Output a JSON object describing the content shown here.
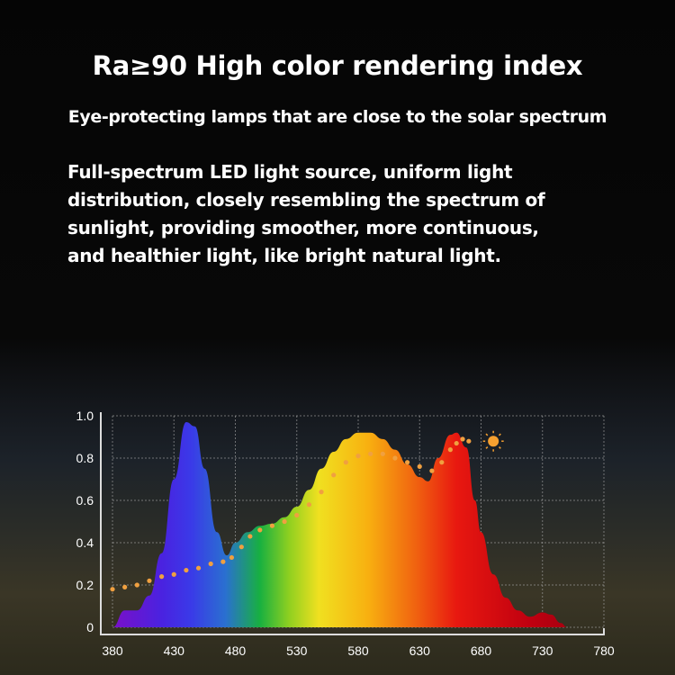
{
  "title": "Ra≥90 High color rendering index",
  "subtitle": "Eye-protecting lamps that are close to the solar spectrum",
  "description": [
    "Full-spectrum LED light source, uniform light",
    "distribution, closely resembling the spectrum of",
    "sunlight, providing smoother, more continuous,",
    "and healthier light, like bright natural light."
  ],
  "chart_data": {
    "type": "area",
    "xlim": [
      380,
      780
    ],
    "ylim": [
      0,
      1.0
    ],
    "grid": true,
    "xticks": [
      "380",
      "430",
      "480",
      "530",
      "580",
      "630",
      "680",
      "730",
      "780"
    ],
    "yticks": [
      "0",
      "0.2",
      "0.4",
      "0.6",
      "0.8",
      "1.0"
    ],
    "series": [
      {
        "style": "rainbow-filled-area",
        "x": [
          380,
          390,
          400,
          410,
          420,
          430,
          440,
          447,
          455,
          465,
          473,
          480,
          490,
          500,
          510,
          520,
          530,
          540,
          550,
          560,
          570,
          580,
          590,
          600,
          610,
          620,
          630,
          637,
          645,
          655,
          660,
          668,
          675,
          680,
          690,
          700,
          710,
          720,
          730,
          737,
          745,
          750
        ],
        "y": [
          0,
          0.08,
          0.08,
          0.15,
          0.35,
          0.7,
          0.97,
          0.95,
          0.75,
          0.45,
          0.34,
          0.4,
          0.45,
          0.48,
          0.49,
          0.52,
          0.57,
          0.65,
          0.75,
          0.83,
          0.89,
          0.92,
          0.92,
          0.89,
          0.84,
          0.77,
          0.71,
          0.69,
          0.8,
          0.91,
          0.92,
          0.85,
          0.6,
          0.45,
          0.25,
          0.14,
          0.08,
          0.05,
          0.07,
          0.06,
          0.02,
          0
        ]
      },
      {
        "style": "dotted-orange",
        "x": [
          380,
          390,
          400,
          410,
          420,
          430,
          440,
          450,
          460,
          470,
          477,
          485,
          492,
          500,
          510,
          520,
          530,
          540,
          550,
          560,
          570,
          580,
          590,
          600,
          610,
          620,
          630,
          640,
          648,
          655,
          660,
          665,
          670
        ],
        "y": [
          0.18,
          0.19,
          0.2,
          0.22,
          0.24,
          0.25,
          0.27,
          0.28,
          0.3,
          0.31,
          0.33,
          0.38,
          0.43,
          0.46,
          0.48,
          0.5,
          0.53,
          0.58,
          0.64,
          0.72,
          0.78,
          0.81,
          0.82,
          0.82,
          0.8,
          0.78,
          0.76,
          0.74,
          0.78,
          0.84,
          0.87,
          0.89,
          0.88
        ]
      }
    ],
    "annotation_icon": "sun-icon"
  }
}
